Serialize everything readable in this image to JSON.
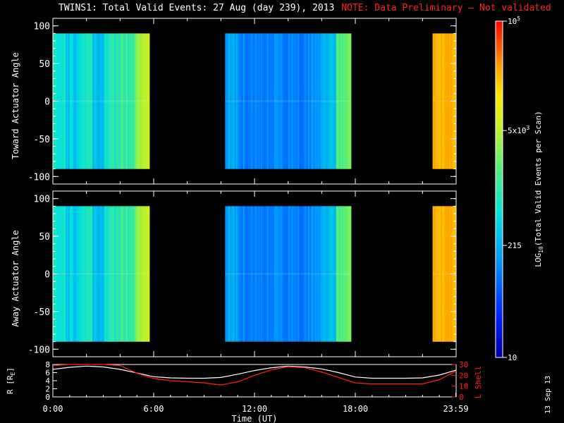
{
  "title": {
    "main": "TWINS1: Total Valid Events: 27 Aug (day 239), 2013",
    "note": "NOTE: Data Preliminary — Not validated"
  },
  "datestamp": "13 Sep 13",
  "colors": {
    "background": "#000000",
    "axes": "#ffffff",
    "note": "#ff2020",
    "l_shell": "#ff2020",
    "radius": "#ffffff"
  },
  "chart_data": [
    {
      "type": "heatmap",
      "panel": "top",
      "ylabel": "Toward Actuator Angle",
      "ylim": [
        -110,
        110
      ],
      "yticks": [
        -100,
        -50,
        0,
        50,
        100
      ],
      "xlim": [
        0,
        24
      ],
      "data_angle_range": [
        -90,
        90
      ],
      "blocks": [
        {
          "start_hr": 0.0,
          "end_hr": 5.75,
          "profile": "early"
        },
        {
          "start_hr": 10.25,
          "end_hr": 17.75,
          "profile": "midday"
        },
        {
          "start_hr": 22.6,
          "end_hr": 24.0,
          "profile": "late"
        }
      ]
    },
    {
      "type": "heatmap",
      "panel": "middle",
      "ylabel": "Away Actuator Angle",
      "ylim": [
        -110,
        110
      ],
      "yticks": [
        -100,
        -50,
        0,
        50,
        100
      ],
      "xlim": [
        0,
        24
      ],
      "data_angle_range": [
        -90,
        90
      ],
      "blocks": [
        {
          "start_hr": 0.0,
          "end_hr": 5.75,
          "profile": "early"
        },
        {
          "start_hr": 10.25,
          "end_hr": 17.75,
          "profile": "midday"
        },
        {
          "start_hr": 22.6,
          "end_hr": 24.0,
          "profile": "late"
        }
      ]
    },
    {
      "type": "line",
      "panel": "bottom",
      "xlabel": "Time (UT)",
      "xticks": [
        "0:00",
        "6:00",
        "12:00",
        "18:00",
        "23:59"
      ],
      "xtick_hours": [
        0,
        6,
        12,
        18,
        23.98
      ],
      "ylabel_left": "R [R",
      "ylabel_left_sub": "E",
      "ylabel_left_end": "]",
      "ylim_left": [
        0,
        8
      ],
      "yticks_left": [
        "0",
        "2",
        "4",
        "6",
        "8"
      ],
      "ylabel_right": "L Shell",
      "ylim_right": [
        0,
        30
      ],
      "yticks_right": [
        "0",
        "10",
        "20",
        "30"
      ],
      "series": [
        {
          "axis": "left",
          "x": [
            0,
            1,
            2,
            3,
            4,
            5,
            6,
            7,
            8,
            9,
            10,
            11,
            12,
            13,
            14,
            15,
            16,
            17,
            18,
            19,
            20,
            21,
            22,
            23,
            24
          ],
          "y": [
            6.8,
            7.3,
            7.6,
            7.4,
            6.8,
            5.9,
            5.0,
            4.7,
            4.6,
            4.6,
            4.8,
            5.6,
            6.5,
            7.2,
            7.6,
            7.4,
            6.9,
            6.0,
            4.9,
            4.6,
            4.6,
            4.6,
            4.7,
            5.4,
            6.6
          ]
        },
        {
          "axis": "right",
          "x": [
            0,
            1,
            2,
            3,
            4,
            5,
            6,
            7,
            8,
            9,
            10,
            11,
            12,
            13,
            14,
            15,
            16,
            17,
            18,
            19,
            20,
            21,
            22,
            23,
            24
          ],
          "y": [
            29,
            30,
            30,
            30,
            29,
            22,
            17,
            15,
            14,
            13,
            11,
            14,
            20,
            25,
            28,
            27,
            23,
            18,
            13,
            12,
            12,
            12,
            12,
            16,
            24
          ]
        }
      ]
    }
  ],
  "colorbar": {
    "label_prefix": "LOG",
    "label_sub": "10",
    "label_rest": "(Total Valid  Events per Scan)",
    "ticks": [
      {
        "text": "10",
        "value": 10
      },
      {
        "text": "215",
        "value": 215
      },
      {
        "text": "5x10",
        "sup": "3",
        "value": 5000
      },
      {
        "text": "10",
        "sup": "5",
        "value": 100000
      }
    ],
    "range": [
      10,
      100000
    ],
    "scale": "log"
  }
}
